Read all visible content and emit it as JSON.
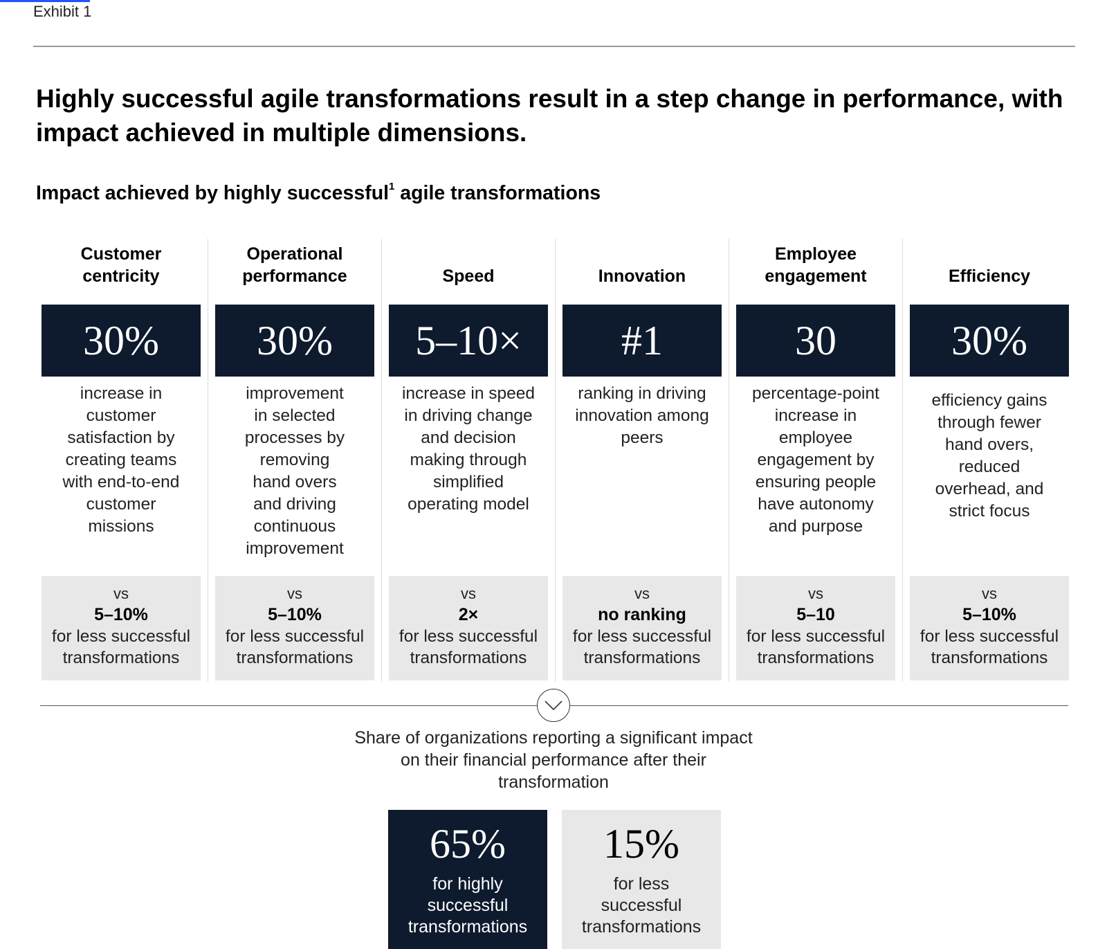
{
  "exhibit_label": "Exhibit 1",
  "title": "Highly successful agile transformations result in a step change in performance, with impact achieved in multiple dimensions.",
  "subtitle": {
    "text": "Impact achieved by highly successful",
    "footnote_marker": "1",
    "text_after": " agile transformations"
  },
  "dimensions": [
    {
      "header": "Customer centricity",
      "stat": "30%",
      "description": "increase in customer satisfaction by creating teams with end-to-end customer missions",
      "vs_label": "vs",
      "comparison_value": "5–10%",
      "comparison_text": "for less successful transformations"
    },
    {
      "header": "Operational performance",
      "stat": "30%",
      "description": "improvement in selected processes by removing hand overs and driving continuous improvement",
      "vs_label": "vs",
      "comparison_value": "5–10%",
      "comparison_text": "for less successful transformations"
    },
    {
      "header": "Speed",
      "stat": "5–10×",
      "description": "increase in speed in driving change and decision making through simplified operating model",
      "vs_label": "vs",
      "comparison_value": "2×",
      "comparison_text": "for less successful transformations"
    },
    {
      "header": "Innovation",
      "stat": "#1",
      "description": "ranking in driving innovation among peers",
      "vs_label": "vs",
      "comparison_value": "no ranking",
      "comparison_text": "for less successful transformations"
    },
    {
      "header": "Employee engagement",
      "stat": "30",
      "description": "percentage-point increase in employee engagement by ensuring people have autonomy and purpose",
      "vs_label": "vs",
      "comparison_value": "5–10",
      "comparison_text": "for less successful transformations"
    },
    {
      "header": "Efficiency",
      "stat": "30%",
      "description": "efficiency gains through fewer hand overs, reduced overhead, and strict focus",
      "vs_label": "vs",
      "comparison_value": "5–10%",
      "comparison_text": "for less successful transformations"
    }
  ],
  "financial": {
    "caption": "Share of organizations reporting a significant impact on their financial performance after their transformation",
    "highly_successful": {
      "value": "65%",
      "label": "for highly successful transformations"
    },
    "less_successful": {
      "value": "15%",
      "label": "for less successful transformations"
    }
  },
  "colors": {
    "navy": "#0e1b2e",
    "light_gray": "#e8e8e8",
    "accent_blue": "#2251ff"
  },
  "icons": {
    "divider_icon": "chevron-down-icon"
  }
}
